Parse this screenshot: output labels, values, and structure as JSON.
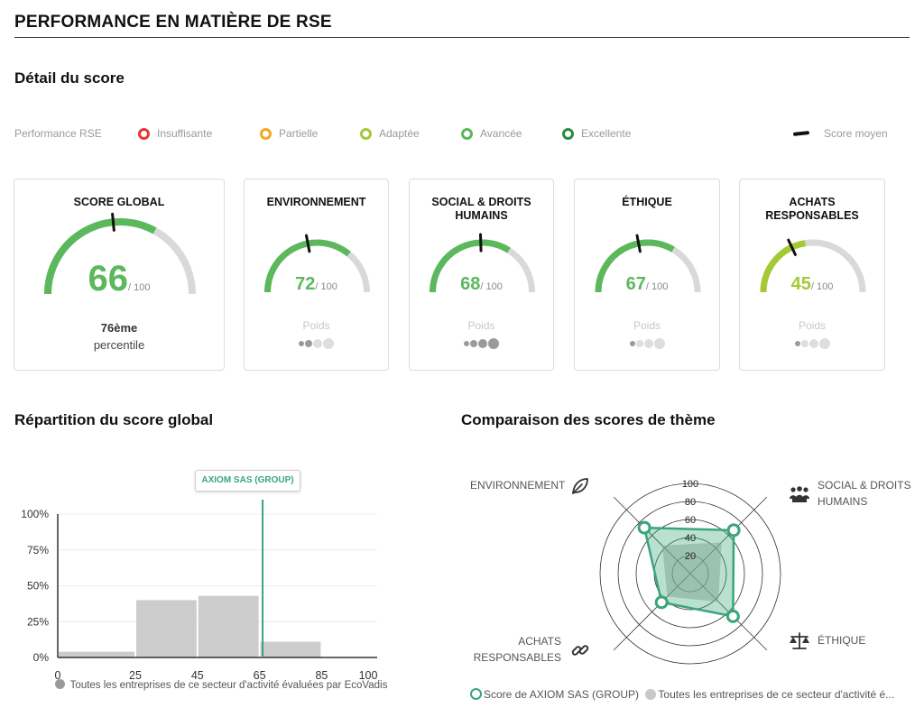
{
  "header": {
    "title": "PERFORMANCE EN MATIÈRE DE RSE"
  },
  "detail": {
    "title": "Détail du score"
  },
  "legend": {
    "label": "Performance RSE",
    "items": [
      {
        "label": "Insuffisante",
        "color": "#e53935"
      },
      {
        "label": "Partielle",
        "color": "#f5a623"
      },
      {
        "label": "Adaptée",
        "color": "#a5c934"
      },
      {
        "label": "Avancée",
        "color": "#5cb85c"
      },
      {
        "label": "Excellente",
        "color": "#2e8b3d"
      }
    ],
    "average_label": "Score moyen"
  },
  "cards": [
    {
      "title": "SCORE GLOBAL",
      "score": "66",
      "denominator": "/ 100",
      "value": 66,
      "average": 47,
      "color": "#5cb85c",
      "percentile_rank": "76ème",
      "percentile_label": "percentile"
    },
    {
      "title": "ENVIRONNEMENT",
      "score": "72",
      "denominator": "/ 100",
      "value": 72,
      "average": 44,
      "color": "#5cb85c",
      "weight_label": "Poids",
      "weight_level": 2
    },
    {
      "title": "SOCIAL & DROITS HUMAINS",
      "score": "68",
      "denominator": "/ 100",
      "value": 68,
      "average": 49,
      "color": "#5cb85c",
      "weight_label": "Poids",
      "weight_level": 4
    },
    {
      "title": "ÉTHIQUE",
      "score": "67",
      "denominator": "/ 100",
      "value": 67,
      "average": 44,
      "color": "#5cb85c",
      "weight_label": "Poids",
      "weight_level": 1
    },
    {
      "title": "ACHATS RESPONSABLES",
      "score": "45",
      "denominator": "/ 100",
      "value": 45,
      "average": 36,
      "color": "#a5c934",
      "weight_label": "Poids",
      "weight_level": 1
    }
  ],
  "distribution": {
    "title": "Répartition du score global",
    "tooltip": "AXIOM SAS (GROUP)",
    "legend": "Toutes les entreprises de ce secteur d'activité évaluées par EcoVadis"
  },
  "comparison": {
    "title": "Comparaison des scores de thème",
    "axis_labels": {
      "environnement": "ENVIRONNEMENT",
      "social_line1": "SOCIAL & DROITS",
      "social_line2": "HUMAINS",
      "ethique": "ÉTHIQUE",
      "achats_line1": "ACHATS",
      "achats_line2": "RESPONSABLES"
    },
    "legend_company": "Score de AXIOM SAS (GROUP)",
    "legend_all": "Toutes les entreprises de ce secteur d'activité é..."
  },
  "chart_data": [
    {
      "type": "bar",
      "title": "Répartition du score global",
      "bins": [
        [
          0,
          25
        ],
        [
          25,
          45
        ],
        [
          45,
          65
        ],
        [
          65,
          85
        ],
        [
          85,
          100
        ]
      ],
      "x_ticks": [
        "0",
        "25",
        "45",
        "65",
        "85",
        "100"
      ],
      "values": [
        4,
        40,
        43,
        11,
        0
      ],
      "y_ticks": [
        "0%",
        "25%",
        "50%",
        "75%",
        "100%"
      ],
      "ylim": [
        0,
        100
      ],
      "marker": {
        "value": 66,
        "label": "AXIOM SAS (GROUP)",
        "color": "#3aa57a"
      },
      "series": [
        {
          "name": "Toutes les entreprises de ce secteur d'activité évaluées par EcoVadis",
          "color": "#cccccc"
        }
      ]
    },
    {
      "type": "radar",
      "title": "Comparaison des scores de thème",
      "axes": [
        "ENVIRONNEMENT",
        "SOCIAL & DROITS HUMAINS",
        "ÉTHIQUE",
        "ACHATS RESPONSABLES"
      ],
      "r_ticks": [
        "20",
        "40",
        "60",
        "80",
        "100"
      ],
      "rlim": [
        0,
        100
      ],
      "series": [
        {
          "name": "Score de AXIOM SAS (GROUP)",
          "values": [
            72,
            68,
            67,
            45
          ],
          "color": "#3aa57a"
        },
        {
          "name": "Toutes les entreprises de ce secteur d'activité é...",
          "values": [
            44,
            49,
            44,
            36
          ],
          "color": "#c8c8c8"
        }
      ]
    }
  ]
}
